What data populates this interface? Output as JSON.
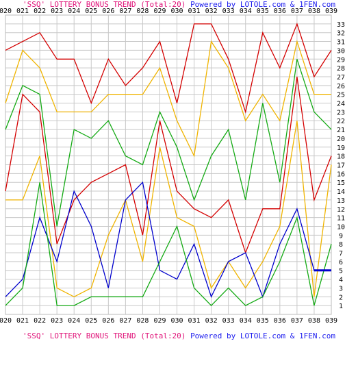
{
  "chart_data": {
    "type": "line",
    "title": "'SSQ' LOTTERY BONUS TREND (Total:20)",
    "credit": "Powered by LOTOLE.com & 1FEN.com",
    "categories": [
      "020",
      "021",
      "022",
      "023",
      "024",
      "025",
      "026",
      "027",
      "028",
      "029",
      "030",
      "031",
      "032",
      "033",
      "034",
      "035",
      "036",
      "037",
      "038",
      "039"
    ],
    "y_ticks": [
      1,
      2,
      3,
      4,
      5,
      6,
      7,
      8,
      9,
      10,
      11,
      12,
      13,
      14,
      15,
      16,
      17,
      18,
      19,
      20,
      21,
      22,
      23,
      24,
      25,
      26,
      27,
      28,
      29,
      30,
      31,
      32,
      33
    ],
    "ylim": [
      0,
      34
    ],
    "grid": true,
    "series": [
      {
        "color": "#d40000",
        "values": [
          30,
          31,
          32,
          29,
          29,
          24,
          29,
          26,
          28,
          31,
          24,
          33,
          33,
          29,
          23,
          32,
          28,
          33,
          27,
          30
        ]
      },
      {
        "color": "#f0b400",
        "values": [
          24,
          30,
          28,
          23,
          23,
          23,
          25,
          25,
          25,
          28,
          22,
          18,
          31,
          28,
          22,
          25,
          22,
          31,
          25,
          25
        ]
      },
      {
        "color": "#14aa14",
        "values": [
          21,
          26,
          25,
          10,
          21,
          20,
          22,
          18,
          17,
          23,
          19,
          13,
          18,
          21,
          13,
          24,
          15,
          29,
          23,
          21
        ]
      },
      {
        "color": "#d40000",
        "values": [
          14,
          25,
          23,
          8,
          13,
          15,
          16,
          17,
          9,
          22,
          14,
          12,
          11,
          13,
          7,
          12,
          12,
          27,
          13,
          18
        ]
      },
      {
        "color": "#f0b400",
        "values": [
          13,
          13,
          18,
          3,
          2,
          3,
          9,
          13,
          6,
          19,
          11,
          10,
          3,
          6,
          3,
          6,
          10,
          22,
          2,
          17
        ]
      },
      {
        "color": "#0000cc",
        "values": [
          2,
          4,
          11,
          6,
          14,
          10,
          3,
          13,
          15,
          5,
          4,
          8,
          2,
          6,
          7,
          2,
          8,
          12,
          5,
          5
        ]
      },
      {
        "color": "#14aa14",
        "values": [
          1,
          3,
          15,
          1,
          1,
          2,
          2,
          2,
          2,
          6,
          10,
          3,
          1,
          3,
          1,
          2,
          6,
          11,
          1,
          8
        ]
      }
    ]
  }
}
